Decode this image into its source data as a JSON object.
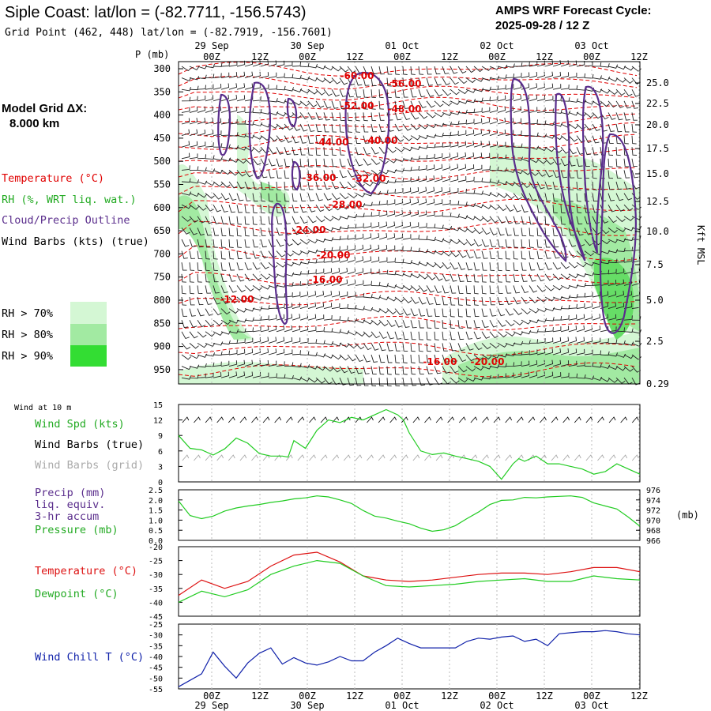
{
  "header": {
    "title": "Siple Coast:  lat/lon = (-82.7711, -156.5743)",
    "grid_point": "Grid Point (462, 448) lat/lon = (-82.7919, -156.7601)",
    "cycle_label": "AMPS WRF Forecast Cycle:",
    "cycle_value": "2025-09-28 / 12  Z"
  },
  "left_labels": {
    "model_grid_1": "Model Grid ΔX:",
    "model_grid_2": "8.000 km",
    "temperature": "Temperature (°C)",
    "rh": "RH (%, WRT liq. wat.)",
    "cloud": "Cloud/Precip Outline",
    "wind": "Wind Barbs (kts) (true)",
    "rh70": "RH > 70%",
    "rh80": "RH > 80%",
    "rh90": "RH > 90%"
  },
  "colors": {
    "temp": "#e00000",
    "rh70": "#d4f7d4",
    "rh80": "#a2eaa2",
    "rh90": "#33dd33",
    "cloud": "#5a2d8c",
    "green_line": "#22cc22",
    "red_line": "#dd1111",
    "blue_line": "#1122aa",
    "grid_barb": "#a8a8a8"
  },
  "time_axis": {
    "top_dates": [
      "29 Sep",
      "30 Sep",
      "01 Oct",
      "02 Oct",
      "03 Oct"
    ],
    "top_hours": [
      "00Z",
      "12Z",
      "00Z",
      "12Z",
      "00Z",
      "12Z",
      "00Z",
      "12Z",
      "00Z",
      "12Z"
    ],
    "bottom_hours": [
      "00Z",
      "12Z",
      "00Z",
      "12Z",
      "00Z",
      "12Z",
      "00Z",
      "12Z",
      "00Z",
      "12Z"
    ],
    "bottom_dates": [
      "29 Sep",
      "30 Sep",
      "01 Oct",
      "02 Oct",
      "03 Oct"
    ]
  },
  "chart_data": [
    {
      "type": "heatmap",
      "ylabel": "P (mb)",
      "pressure_ticks": [
        "300",
        "350",
        "400",
        "450",
        "500",
        "550",
        "600",
        "650",
        "700",
        "750",
        "800",
        "850",
        "900",
        "950"
      ],
      "height_label": "Kft MSL",
      "height_ticks": [
        "25.0",
        "22.5",
        "20.0",
        "17.5",
        "15.0",
        "12.5",
        "10.0",
        "7.5",
        "5.0",
        "2.5",
        "0.29"
      ],
      "temp_labels": [
        "-60.00",
        "-56.00",
        "-52.00",
        "-48.00",
        "-44.00",
        "-40.00",
        "-36.00",
        "-32.00",
        "-28.00",
        "-24.00",
        "-20.00",
        "-16.00",
        "-12.00",
        "-16.00",
        "-20.00"
      ]
    },
    {
      "type": "line",
      "caption": "Wind at 10 m",
      "series_labels": [
        "Wind Spd (kts)",
        "Wind Barbs (true)",
        "Wind Barbs (grid)"
      ],
      "yticks": [
        "15",
        "12",
        "9",
        "6",
        "3",
        "0"
      ],
      "ylim": [
        0,
        15
      ],
      "x_hours": [
        0,
        6,
        12,
        18,
        24,
        30,
        36,
        42,
        48,
        54,
        57,
        60,
        66,
        72,
        78,
        84,
        90,
        96,
        102,
        108,
        114,
        117,
        120,
        126,
        132,
        138,
        144,
        150,
        156,
        162,
        168,
        174,
        177,
        180,
        186,
        192,
        198,
        204,
        210,
        216,
        222,
        228,
        234,
        240
      ],
      "wind_speed": [
        9.0,
        6.5,
        6.2,
        5.2,
        6.4,
        8.5,
        7.5,
        5.5,
        5.0,
        5.0,
        4.8,
        8.0,
        6.5,
        10.0,
        12.0,
        11.5,
        12.5,
        12.0,
        13.0,
        14.0,
        13.0,
        12.0,
        9.5,
        6.0,
        5.3,
        5.6,
        5.0,
        4.5,
        4.0,
        3.0,
        0.5,
        3.5,
        4.5,
        4.0,
        5.0,
        3.5,
        3.5,
        3.0,
        2.5,
        1.5,
        2.0,
        3.5,
        2.5,
        1.5
      ]
    },
    {
      "type": "line",
      "series_labels": [
        "Precip (mm)",
        "liq. equiv.",
        "3-hr accum",
        "Pressure (mb)"
      ],
      "yticks": [
        "2.5",
        "2.0",
        "1.5",
        "1.0",
        "0.5",
        "0.0"
      ],
      "ylim": [
        0,
        2.5
      ],
      "right_ticks": [
        "976",
        "974",
        "972",
        "970",
        "968",
        "966"
      ],
      "right_ylim": [
        966,
        976
      ],
      "right_unit": "(mb)",
      "x_hours": [
        0,
        6,
        12,
        18,
        24,
        30,
        36,
        42,
        48,
        54,
        60,
        66,
        72,
        78,
        84,
        90,
        96,
        102,
        108,
        114,
        120,
        126,
        132,
        138,
        144,
        150,
        156,
        162,
        168,
        174,
        180,
        186,
        192,
        198,
        204,
        210,
        216,
        222,
        228,
        234,
        240
      ],
      "pressure": [
        973.8,
        970.9,
        970.3,
        970.8,
        971.8,
        972.4,
        972.8,
        973.1,
        973.5,
        973.8,
        974.2,
        974.4,
        974.8,
        974.6,
        974.0,
        973.3,
        971.9,
        970.8,
        970.4,
        969.8,
        969.3,
        968.4,
        967.8,
        968.1,
        968.9,
        970.3,
        971.6,
        973.1,
        973.9,
        974.0,
        974.5,
        974.4,
        974.6,
        974.7,
        974.8,
        974.5,
        973.4,
        972.8,
        972.2,
        970.6,
        968.8
      ]
    },
    {
      "type": "line",
      "series_labels": [
        "Temperature (°C)",
        "Dewpoint (°C)"
      ],
      "yticks": [
        "-20",
        "-25",
        "-30",
        "-35",
        "-40",
        "-45"
      ],
      "ylim": [
        -45,
        -20
      ],
      "x_hours": [
        0,
        12,
        24,
        36,
        48,
        60,
        72,
        84,
        96,
        108,
        120,
        132,
        144,
        156,
        168,
        180,
        192,
        204,
        216,
        228,
        240
      ],
      "temperature": [
        -37.5,
        -32.0,
        -35.0,
        -32.5,
        -27.0,
        -23.0,
        -22.0,
        -25.5,
        -30.5,
        -32.0,
        -32.5,
        -32.0,
        -31.0,
        -30.0,
        -29.5,
        -29.5,
        -30.0,
        -29.0,
        -27.5,
        -27.5,
        -29.0
      ],
      "dewpoint": [
        -40.0,
        -36.0,
        -38.0,
        -35.5,
        -30.0,
        -27.0,
        -25.0,
        -26.0,
        -30.5,
        -34.0,
        -34.5,
        -34.0,
        -33.5,
        -32.5,
        -32.0,
        -31.5,
        -32.5,
        -32.5,
        -30.5,
        -31.5,
        -32.0
      ]
    },
    {
      "type": "line",
      "series_labels": [
        "Wind Chill T (°C)"
      ],
      "yticks": [
        "-25",
        "-30",
        "-35",
        "-40",
        "-45",
        "-50",
        "-55"
      ],
      "ylim": [
        -55,
        -25
      ],
      "x_hours": [
        0,
        12,
        18,
        24,
        30,
        36,
        42,
        48,
        54,
        60,
        66,
        72,
        78,
        84,
        90,
        96,
        102,
        108,
        114,
        120,
        126,
        132,
        138,
        144,
        150,
        156,
        162,
        168,
        174,
        180,
        186,
        192,
        198,
        204,
        210,
        216,
        222,
        228,
        234,
        240
      ],
      "wind_chill": [
        -54.0,
        -48.0,
        -38.0,
        -44.5,
        -50.0,
        -43.0,
        -38.5,
        -36.0,
        -43.5,
        -40.5,
        -43.0,
        -44.0,
        -42.5,
        -40.0,
        -42.0,
        -42.0,
        -38.0,
        -35.0,
        -31.5,
        -34.0,
        -36.0,
        -36.0,
        -36.0,
        -36.0,
        -33.0,
        -31.5,
        -32.0,
        -31.0,
        -30.5,
        -33.0,
        -32.0,
        -35.0,
        -29.5,
        -29.0,
        -28.5,
        -28.5,
        -28.0,
        -28.5,
        -29.5,
        -30.0
      ]
    }
  ]
}
